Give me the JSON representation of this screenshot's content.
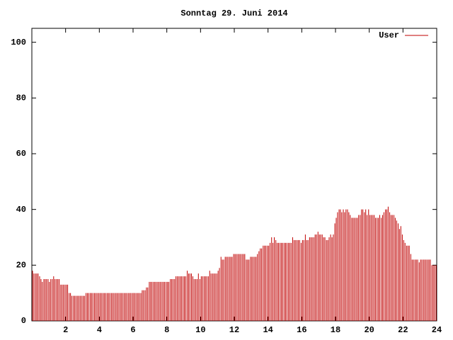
{
  "chart_data": {
    "type": "impulse",
    "title": "Sonntag 29. Juni 2014",
    "series": [
      {
        "name": "User",
        "color": "#c00000",
        "x": [
          0,
          0.08,
          0.17,
          0.25,
          0.33,
          0.42,
          0.5,
          0.58,
          0.67,
          0.75,
          0.83,
          0.92,
          1,
          1.08,
          1.17,
          1.25,
          1.33,
          1.42,
          1.5,
          1.58,
          1.67,
          1.75,
          1.83,
          1.92,
          2,
          2.08,
          2.17,
          2.25,
          2.33,
          2.42,
          2.5,
          2.58,
          2.67,
          2.75,
          2.83,
          2.92,
          3,
          3.08,
          3.17,
          3.25,
          3.33,
          3.42,
          3.5,
          3.58,
          3.67,
          3.75,
          3.83,
          3.92,
          4,
          4.08,
          4.17,
          4.25,
          4.33,
          4.42,
          4.5,
          4.58,
          4.67,
          4.75,
          4.83,
          4.92,
          5,
          5.08,
          5.17,
          5.25,
          5.33,
          5.42,
          5.5,
          5.58,
          5.67,
          5.75,
          5.83,
          5.92,
          6,
          6.08,
          6.17,
          6.25,
          6.33,
          6.42,
          6.5,
          6.58,
          6.67,
          6.75,
          6.83,
          6.92,
          7,
          7.08,
          7.17,
          7.25,
          7.33,
          7.42,
          7.5,
          7.58,
          7.67,
          7.75,
          7.83,
          7.92,
          8,
          8.08,
          8.17,
          8.25,
          8.33,
          8.42,
          8.5,
          8.58,
          8.67,
          8.75,
          8.83,
          8.92,
          9,
          9.08,
          9.17,
          9.25,
          9.33,
          9.42,
          9.5,
          9.58,
          9.67,
          9.75,
          9.83,
          9.92,
          10,
          10.08,
          10.17,
          10.25,
          10.33,
          10.42,
          10.5,
          10.58,
          10.67,
          10.75,
          10.83,
          10.92,
          11,
          11.08,
          11.17,
          11.25,
          11.33,
          11.42,
          11.5,
          11.58,
          11.67,
          11.75,
          11.83,
          11.92,
          12,
          12.08,
          12.17,
          12.25,
          12.33,
          12.42,
          12.5,
          12.58,
          12.67,
          12.75,
          12.83,
          12.92,
          13,
          13.08,
          13.17,
          13.25,
          13.33,
          13.42,
          13.5,
          13.58,
          13.67,
          13.75,
          13.83,
          13.92,
          14,
          14.08,
          14.17,
          14.25,
          14.33,
          14.42,
          14.5,
          14.58,
          14.67,
          14.75,
          14.83,
          14.92,
          15,
          15.08,
          15.17,
          15.25,
          15.33,
          15.42,
          15.5,
          15.58,
          15.67,
          15.75,
          15.83,
          15.92,
          16,
          16.08,
          16.17,
          16.25,
          16.33,
          16.42,
          16.5,
          16.58,
          16.67,
          16.75,
          16.83,
          16.92,
          17,
          17.08,
          17.17,
          17.25,
          17.33,
          17.42,
          17.5,
          17.58,
          17.67,
          17.75,
          17.83,
          17.92,
          18,
          18.08,
          18.17,
          18.25,
          18.33,
          18.42,
          18.5,
          18.58,
          18.67,
          18.75,
          18.83,
          18.92,
          19,
          19.08,
          19.17,
          19.25,
          19.33,
          19.42,
          19.5,
          19.58,
          19.67,
          19.75,
          19.83,
          19.92,
          20,
          20.08,
          20.17,
          20.25,
          20.33,
          20.42,
          20.5,
          20.58,
          20.67,
          20.75,
          20.83,
          20.92,
          21,
          21.08,
          21.17,
          21.25,
          21.33,
          21.42,
          21.5,
          21.58,
          21.67,
          21.75,
          21.83,
          21.92,
          22,
          22.08,
          22.17,
          22.25,
          22.33,
          22.42,
          22.5,
          22.58,
          22.67,
          22.75,
          22.83,
          22.92,
          23,
          23.08,
          23.17,
          23.25,
          23.33,
          23.42,
          23.5,
          23.58,
          23.67,
          23.75,
          23.83,
          23.92
        ],
        "values": [
          18,
          17,
          17,
          17,
          17,
          16,
          15,
          14,
          15,
          15,
          15,
          15,
          14,
          15,
          15,
          16,
          15,
          15,
          15,
          15,
          13,
          13,
          13,
          13,
          13,
          13,
          10,
          10,
          9,
          9,
          9,
          9,
          9,
          9,
          9,
          9,
          9,
          9,
          10,
          10,
          10,
          10,
          10,
          10,
          10,
          10,
          10,
          10,
          10,
          10,
          10,
          10,
          10,
          10,
          10,
          10,
          10,
          10,
          10,
          10,
          10,
          10,
          10,
          10,
          10,
          10,
          10,
          10,
          10,
          10,
          10,
          10,
          10,
          10,
          10,
          10,
          10,
          10,
          11,
          11,
          11,
          12,
          12,
          14,
          14,
          14,
          14,
          14,
          14,
          14,
          14,
          14,
          14,
          14,
          14,
          14,
          14,
          14,
          15,
          15,
          15,
          15,
          16,
          16,
          16,
          16,
          16,
          16,
          16,
          16,
          18,
          17,
          17,
          17,
          16,
          15,
          15,
          15,
          17,
          15,
          16,
          16,
          16,
          16,
          16,
          16,
          18,
          17,
          17,
          17,
          17,
          17,
          18,
          19,
          23,
          22,
          22,
          23,
          23,
          23,
          23,
          23,
          23,
          24,
          24,
          24,
          24,
          24,
          24,
          24,
          24,
          24,
          22,
          22,
          22,
          23,
          23,
          23,
          23,
          23,
          24,
          25,
          26,
          26,
          27,
          27,
          27,
          27,
          27,
          28,
          30,
          28,
          30,
          29,
          28,
          28,
          28,
          28,
          28,
          28,
          28,
          28,
          28,
          28,
          28,
          30,
          29,
          29,
          29,
          29,
          29,
          28,
          29,
          29,
          31,
          29,
          29,
          30,
          30,
          30,
          30,
          31,
          31,
          32,
          31,
          31,
          31,
          30,
          30,
          29,
          29,
          30,
          31,
          30,
          31,
          35,
          37,
          39,
          40,
          40,
          39,
          40,
          39,
          40,
          40,
          39,
          38,
          37,
          37,
          37,
          37,
          37,
          38,
          38,
          40,
          40,
          39,
          40,
          38,
          40,
          38,
          38,
          38,
          38,
          37,
          37,
          37,
          38,
          37,
          38,
          39,
          40,
          40,
          41,
          39,
          38,
          38,
          38,
          37,
          36,
          35,
          33,
          34,
          31,
          29,
          28,
          27,
          27,
          27,
          24,
          22,
          22,
          22,
          22,
          22,
          21,
          22,
          22,
          22,
          22,
          22,
          22,
          22,
          22,
          20,
          20,
          20,
          20
        ]
      }
    ],
    "xlim": [
      0,
      24
    ],
    "xticks": [
      2,
      4,
      6,
      8,
      10,
      12,
      14,
      16,
      18,
      20,
      22,
      24
    ],
    "ylim": [
      0,
      105
    ],
    "yticks": [
      0,
      20,
      40,
      60,
      80,
      100
    ],
    "legend": "top-right"
  }
}
